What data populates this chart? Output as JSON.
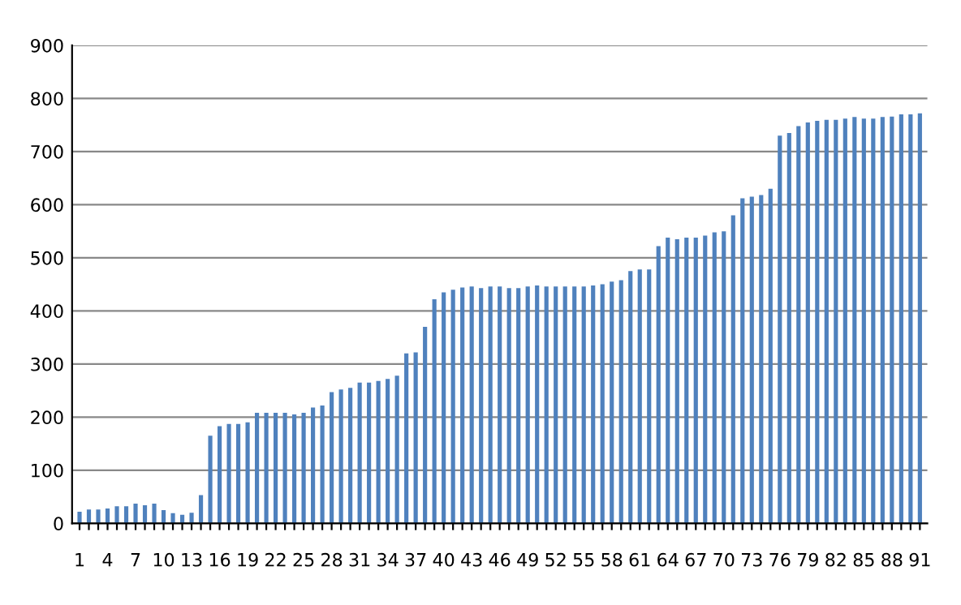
{
  "chart_data": {
    "type": "bar",
    "categories": [
      "1",
      null,
      null,
      "4",
      null,
      null,
      "7",
      null,
      null,
      "10",
      null,
      null,
      "13",
      null,
      null,
      "16",
      null,
      null,
      "19",
      null,
      null,
      "22",
      null,
      null,
      "25",
      null,
      null,
      "28",
      null,
      null,
      "31",
      null,
      null,
      "34",
      null,
      null,
      "37",
      null,
      null,
      "40",
      null,
      null,
      "43",
      null,
      null,
      "46",
      null,
      null,
      "49",
      null,
      null,
      "52",
      null,
      null,
      "55",
      null,
      null,
      "58",
      null,
      null,
      "61",
      null,
      null,
      "64",
      null,
      null,
      "67",
      null,
      null,
      "70",
      null,
      null,
      "73",
      null,
      null,
      "76",
      null,
      null,
      "79",
      null,
      null,
      "82",
      null,
      null,
      "85",
      null,
      null,
      "88",
      null,
      null,
      "91"
    ],
    "values": [
      22,
      26,
      26,
      28,
      32,
      32,
      37,
      34,
      37,
      25,
      19,
      16,
      20,
      53,
      165,
      183,
      187,
      187,
      190,
      208,
      208,
      208,
      208,
      205,
      208,
      218,
      222,
      247,
      252,
      255,
      265,
      265,
      268,
      272,
      278,
      320,
      322,
      370,
      422,
      435,
      440,
      444,
      446,
      443,
      446,
      446,
      443,
      443,
      446,
      448,
      446,
      446,
      446,
      446,
      446,
      448,
      450,
      455,
      458,
      475,
      478,
      478,
      522,
      538,
      535,
      538,
      538,
      542,
      548,
      550,
      580,
      612,
      615,
      618,
      630,
      730,
      735,
      748,
      755,
      758,
      760,
      760,
      762,
      765,
      762,
      762,
      765,
      766,
      770,
      770,
      772
    ],
    "color": "#4f81bd",
    "ylim": [
      0,
      900
    ],
    "yticks": [
      0,
      100,
      200,
      300,
      400,
      500,
      600,
      700,
      800,
      900
    ],
    "grid": "y"
  }
}
